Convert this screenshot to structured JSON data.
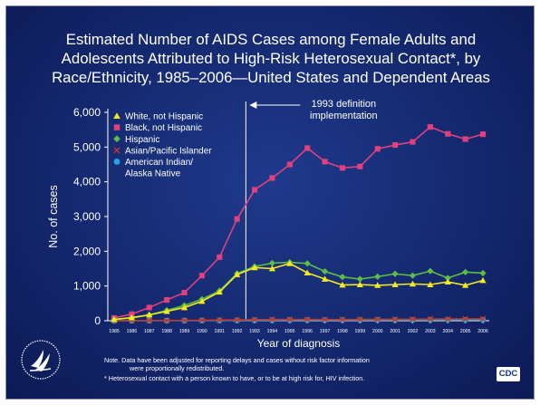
{
  "title_lines": [
    "Estimated Number of AIDS Cases among Female Adults and",
    "Adolescents Attributed to High-Risk Heterosexual Contact*, by",
    "Race/Ethnicity, 1985–2006—United States and Dependent Areas"
  ],
  "chart_data": {
    "type": "line",
    "title": "Estimated Number of AIDS Cases among Female Adults and Adolescents Attributed to High-Risk Heterosexual Contact*, by Race/Ethnicity, 1985–2006—United States and Dependent Areas",
    "xlabel": "Year of diagnosis",
    "ylabel": "No. of cases",
    "ylim": [
      0,
      6000
    ],
    "yticks": [
      0,
      1000,
      2000,
      3000,
      4000,
      5000,
      6000
    ],
    "ytick_labels": [
      "0",
      "1,000",
      "2,000",
      "3,000",
      "4,000",
      "5,000",
      "6,000"
    ],
    "x": [
      "1985",
      "1986",
      "1987",
      "1988",
      "1989",
      "1990",
      "1991",
      "1992",
      "1993",
      "1994",
      "1995",
      "1996",
      "1997",
      "1998",
      "1999",
      "2000",
      "2001",
      "2002",
      "2003",
      "2004",
      "2005",
      "2006"
    ],
    "legend_position": "top-left",
    "annotation": {
      "text_lines": [
        "1993 definition",
        "implementation"
      ],
      "x": "1993"
    },
    "series": [
      {
        "name": "White, not Hispanic",
        "marker": "triangle",
        "color": "#f2ea1f",
        "values": [
          40,
          90,
          170,
          270,
          380,
          560,
          830,
          1330,
          1530,
          1500,
          1650,
          1380,
          1200,
          1030,
          1040,
          1020,
          1040,
          1060,
          1040,
          1120,
          1020,
          1160
        ]
      },
      {
        "name": "Black, not Hispanic",
        "marker": "square",
        "color": "#e0407e",
        "values": [
          80,
          190,
          380,
          600,
          810,
          1300,
          1830,
          2930,
          3770,
          4110,
          4500,
          4970,
          4580,
          4400,
          4440,
          4950,
          5060,
          5150,
          5580,
          5380,
          5230,
          5370
        ]
      },
      {
        "name": "Hispanic",
        "marker": "diamond",
        "color": "#5dbb46",
        "values": [
          30,
          80,
          170,
          300,
          440,
          620,
          860,
          1360,
          1560,
          1660,
          1680,
          1650,
          1420,
          1260,
          1200,
          1270,
          1350,
          1300,
          1430,
          1230,
          1400,
          1370
        ]
      },
      {
        "name": "Asian/Pacific Islander",
        "marker": "x",
        "color": "#c0392b",
        "values": [
          2,
          4,
          6,
          8,
          10,
          14,
          18,
          25,
          32,
          35,
          38,
          36,
          34,
          35,
          38,
          40,
          42,
          45,
          48,
          50,
          52,
          55
        ]
      },
      {
        "name": "American Indian/ Alaska Native",
        "label_lines": [
          "American Indian/",
          "Alaska Native"
        ],
        "marker": "circle",
        "color": "#27a6e0",
        "values": [
          1,
          2,
          3,
          4,
          5,
          6,
          7,
          10,
          12,
          14,
          15,
          16,
          16,
          17,
          18,
          19,
          20,
          21,
          22,
          23,
          24,
          25
        ]
      }
    ]
  },
  "footer": {
    "note_line1": "Note. Data have been adjusted for reporting delays and cases without risk factor information",
    "note_line2": "were proportionally redistributed.",
    "star_note": "* Heterosexual contact with a person known to have, or to be at high risk for, HIV infection."
  },
  "logos": {
    "hhs": "hhs-eagle-logo",
    "cdc_text": "CDC"
  }
}
